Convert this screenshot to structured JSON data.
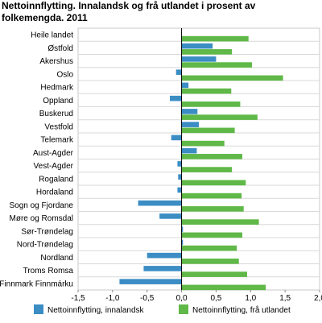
{
  "chart_data": {
    "type": "bar",
    "orientation": "horizontal",
    "title": "Nettoinnflytting. Innalandsk og frå utlandet i prosent av folkemengda. 2011",
    "xlabel": "",
    "ylabel": "",
    "xlim": [
      -1.5,
      2.0
    ],
    "x_ticks": [
      "-1,5",
      "-1,0",
      "-0,5",
      "0,0",
      "0,5",
      "1,0",
      "1,5",
      "2,0"
    ],
    "x_tick_values": [
      -1.5,
      -1.0,
      -0.5,
      0.0,
      0.5,
      1.0,
      1.5,
      2.0
    ],
    "grid": true,
    "legend_position": "bottom",
    "categories": [
      "Heile landet",
      "Østfold",
      "Akershus",
      "Oslo",
      "Hedmark",
      "Oppland",
      "Buskerud",
      "Vestfold",
      "Telemark",
      "Aust-Agder",
      "Vest-Agder",
      "Rogaland",
      "Hordaland",
      "Sogn og Fjordane",
      "Møre og Romsdal",
      "Sør-Trøndelag",
      "Nord-Trøndelag",
      "Nordland",
      "Troms Romsa",
      "Finnmark Finnmárku"
    ],
    "series": [
      {
        "name": "Nettoinnflytting, innalandsk",
        "color": "#3b8dc4",
        "values": [
          0.0,
          0.45,
          0.5,
          -0.08,
          0.1,
          -0.17,
          0.23,
          0.25,
          -0.15,
          0.22,
          -0.06,
          -0.05,
          -0.06,
          -0.63,
          -0.32,
          0.02,
          0.02,
          -0.5,
          -0.55,
          -0.9
        ]
      },
      {
        "name": "Nettoinnflytting, frå utlandet",
        "color": "#5fb847",
        "values": [
          0.97,
          0.73,
          1.02,
          1.47,
          0.72,
          0.85,
          1.1,
          0.77,
          0.62,
          0.88,
          0.73,
          0.93,
          0.87,
          0.9,
          1.12,
          0.88,
          0.8,
          0.83,
          0.95,
          1.22
        ]
      }
    ]
  }
}
